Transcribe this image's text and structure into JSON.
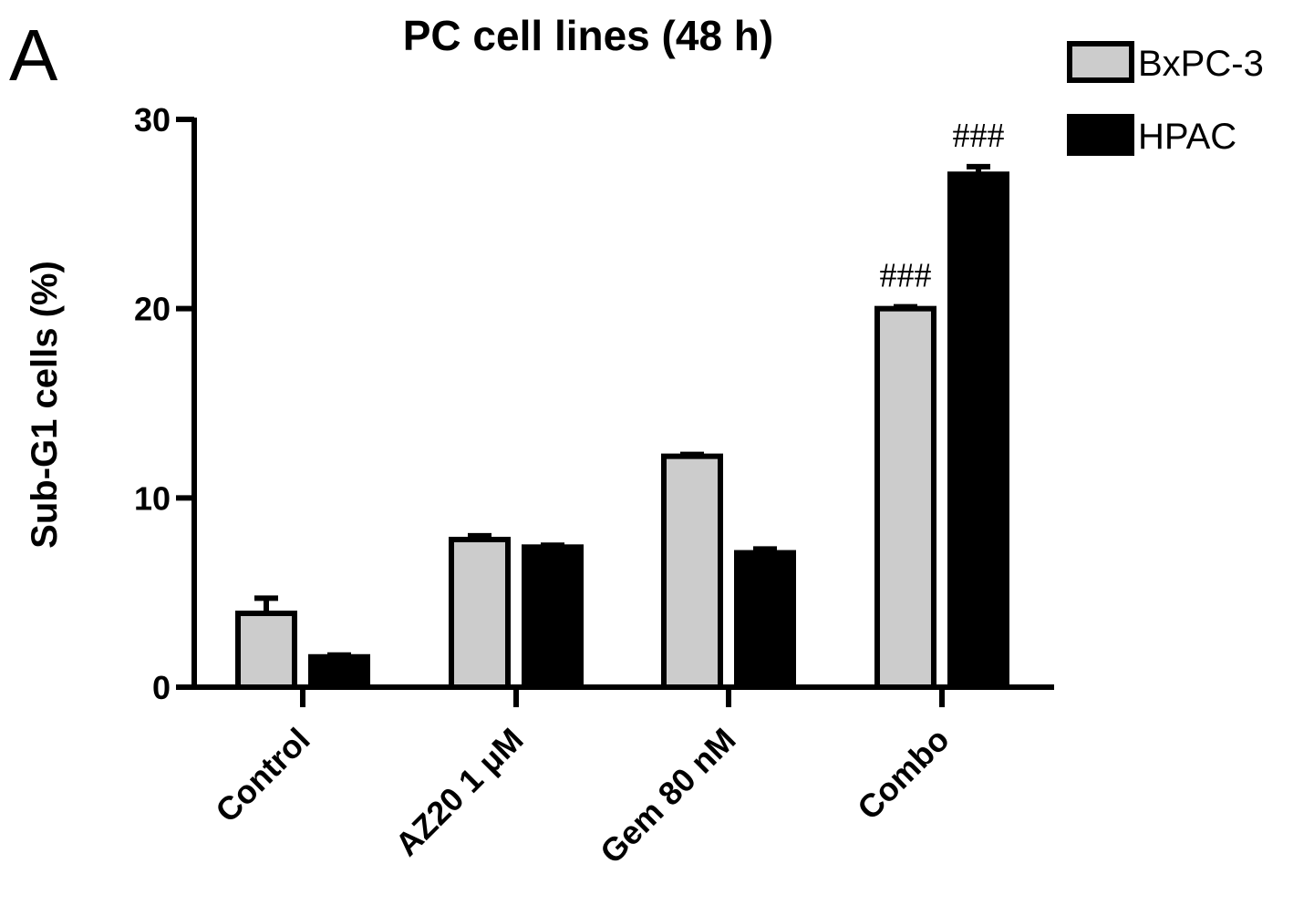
{
  "panel_letter": "A",
  "chart_data": {
    "type": "bar",
    "title": "PC cell lines (48 h)",
    "xlabel": "",
    "ylabel": "Sub-G1 cells (%)",
    "ylim": [
      0,
      30
    ],
    "yticks": [
      "0",
      "10",
      "20",
      "30"
    ],
    "categories": [
      "Control",
      "AZ20 1 μM",
      "Gem 80 nM",
      "Combo"
    ],
    "series": [
      {
        "name": "BxPC-3",
        "color": "#cccccc",
        "values": [
          3.9,
          7.8,
          12.2,
          20.0
        ],
        "errors": [
          0.8,
          0.2,
          0.1,
          0.1
        ],
        "annotations": [
          "",
          "",
          "",
          "###"
        ]
      },
      {
        "name": "HPAC",
        "color": "#000000",
        "values": [
          1.6,
          7.4,
          7.1,
          27.1
        ],
        "errors": [
          0.1,
          0.1,
          0.2,
          0.4
        ],
        "annotations": [
          "",
          "",
          "",
          "###"
        ]
      }
    ],
    "legend_position": "top-right",
    "grid": false
  }
}
